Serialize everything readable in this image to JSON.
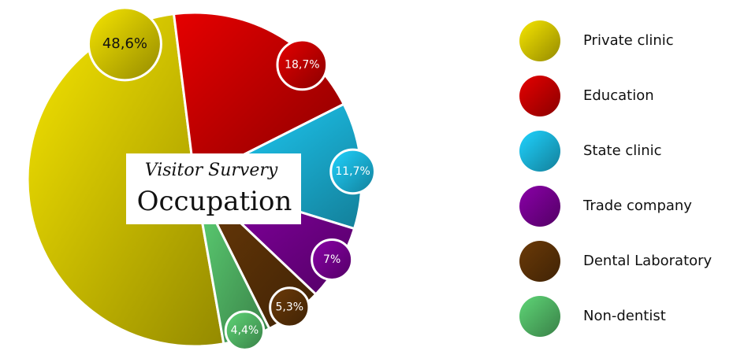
{
  "chart_data": {
    "type": "pie",
    "title": "Occupation",
    "subtitle": "Visitor Survery",
    "categories": [
      "Private clinic",
      "Education",
      "State clinic",
      "Trade company",
      "Dental Laboratory",
      "Non-dentist"
    ],
    "values": [
      48.6,
      18.7,
      11.7,
      7,
      5.3,
      4.4
    ],
    "value_labels": [
      "48,6%",
      "18,7%",
      "11,7%",
      "7%",
      "5,3%",
      "4,4%"
    ],
    "colors": [
      "#f7e600",
      "#e60000",
      "#1fd3ff",
      "#8a00a8",
      "#6b3a08",
      "#5fd677"
    ],
    "legend": "right"
  }
}
